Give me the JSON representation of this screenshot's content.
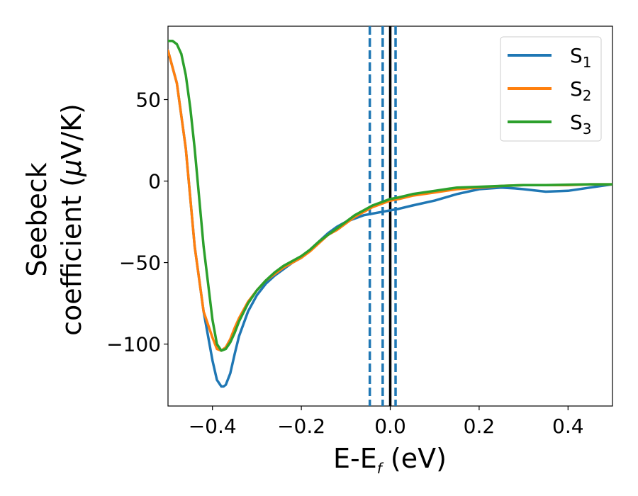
{
  "chart_data": {
    "type": "line",
    "xlabel": "E-E",
    "xlabel_sub": "f",
    "xlabel_unit": " (eV)",
    "ylabel_line1": "Seebeck",
    "ylabel_line2": "coefficient  (",
    "ylabel_mu": "μ",
    "ylabel_unit_tail": "V/K)",
    "xlim": [
      -0.5,
      0.5
    ],
    "ylim": [
      -138,
      95
    ],
    "x_ticks": [
      -0.4,
      -0.2,
      0.0,
      0.2,
      0.4
    ],
    "x_tick_labels": [
      "−0.4",
      "−0.2",
      "0.0",
      "0.2",
      "0.4"
    ],
    "y_ticks": [
      50,
      0,
      -50,
      -100
    ],
    "y_tick_labels": [
      "50",
      "0",
      "−50",
      "−100"
    ],
    "grid": false,
    "legend_position": "top-right",
    "series": [
      {
        "name": "S",
        "name_sub": "1",
        "color": "#1f77b4",
        "x": [
          -0.5,
          -0.48,
          -0.46,
          -0.44,
          -0.42,
          -0.4,
          -0.39,
          -0.38,
          -0.375,
          -0.37,
          -0.36,
          -0.35,
          -0.34,
          -0.32,
          -0.3,
          -0.28,
          -0.26,
          -0.24,
          -0.22,
          -0.2,
          -0.18,
          -0.16,
          -0.14,
          -0.12,
          -0.1,
          -0.08,
          -0.06,
          -0.04,
          -0.02,
          0.0,
          0.02,
          0.05,
          0.1,
          0.15,
          0.2,
          0.25,
          0.28,
          0.3,
          0.35,
          0.4,
          0.45,
          0.5
        ],
        "y": [
          80,
          60,
          20,
          -40,
          -80,
          -110,
          -122,
          -126,
          -126,
          -125,
          -118,
          -106,
          -95,
          -80,
          -70,
          -63,
          -58,
          -54,
          -50,
          -47,
          -42,
          -37,
          -32,
          -28,
          -25,
          -23,
          -21,
          -20,
          -19,
          -18,
          -17,
          -15,
          -12,
          -8,
          -5,
          -4,
          -4.5,
          -5,
          -6.5,
          -6,
          -4,
          -2
        ]
      },
      {
        "name": "S",
        "name_sub": "2",
        "color": "#ff7f0e",
        "x": [
          -0.5,
          -0.48,
          -0.46,
          -0.44,
          -0.42,
          -0.4,
          -0.39,
          -0.38,
          -0.37,
          -0.36,
          -0.35,
          -0.34,
          -0.32,
          -0.3,
          -0.28,
          -0.26,
          -0.24,
          -0.22,
          -0.2,
          -0.18,
          -0.16,
          -0.14,
          -0.12,
          -0.1,
          -0.08,
          -0.06,
          -0.04,
          -0.02,
          0.0,
          0.02,
          0.05,
          0.1,
          0.15,
          0.2,
          0.25,
          0.3,
          0.35,
          0.4,
          0.45,
          0.5
        ],
        "y": [
          80,
          60,
          20,
          -40,
          -80,
          -96,
          -103,
          -104,
          -102,
          -97,
          -90,
          -84,
          -74,
          -67,
          -61,
          -57,
          -53,
          -50,
          -47,
          -43,
          -38,
          -33,
          -30,
          -26,
          -22,
          -19,
          -16,
          -14,
          -12,
          -11,
          -9,
          -7,
          -5,
          -4,
          -3,
          -2.5,
          -2.5,
          -2.5,
          -2,
          -2
        ]
      },
      {
        "name": "S",
        "name_sub": "3",
        "color": "#2ca02c",
        "x": [
          -0.5,
          -0.49,
          -0.48,
          -0.47,
          -0.46,
          -0.45,
          -0.44,
          -0.42,
          -0.4,
          -0.39,
          -0.38,
          -0.37,
          -0.36,
          -0.35,
          -0.34,
          -0.32,
          -0.3,
          -0.28,
          -0.26,
          -0.24,
          -0.22,
          -0.2,
          -0.18,
          -0.16,
          -0.14,
          -0.12,
          -0.1,
          -0.08,
          -0.06,
          -0.04,
          -0.02,
          0.0,
          0.02,
          0.05,
          0.1,
          0.15,
          0.2,
          0.25,
          0.3,
          0.35,
          0.4,
          0.45,
          0.5
        ],
        "y": [
          86,
          86,
          84,
          78,
          65,
          45,
          20,
          -40,
          -85,
          -100,
          -104,
          -103,
          -99,
          -93,
          -86,
          -75,
          -67,
          -61,
          -56,
          -52,
          -49,
          -46,
          -42,
          -37,
          -33,
          -29,
          -25,
          -21,
          -18,
          -15,
          -13,
          -11,
          -10,
          -8,
          -6,
          -4,
          -3.5,
          -3,
          -2.5,
          -2.5,
          -2.2,
          -2,
          -2
        ]
      }
    ],
    "vertical_lines": [
      {
        "x": -0.046,
        "style": "dashed",
        "color": "#1f77b4"
      },
      {
        "x": -0.017,
        "style": "dashed",
        "color": "#1f77b4"
      },
      {
        "x": 0.012,
        "style": "dashed",
        "color": "#1f77b4"
      },
      {
        "x": 0.0,
        "style": "solid",
        "color": "#000000"
      }
    ]
  }
}
